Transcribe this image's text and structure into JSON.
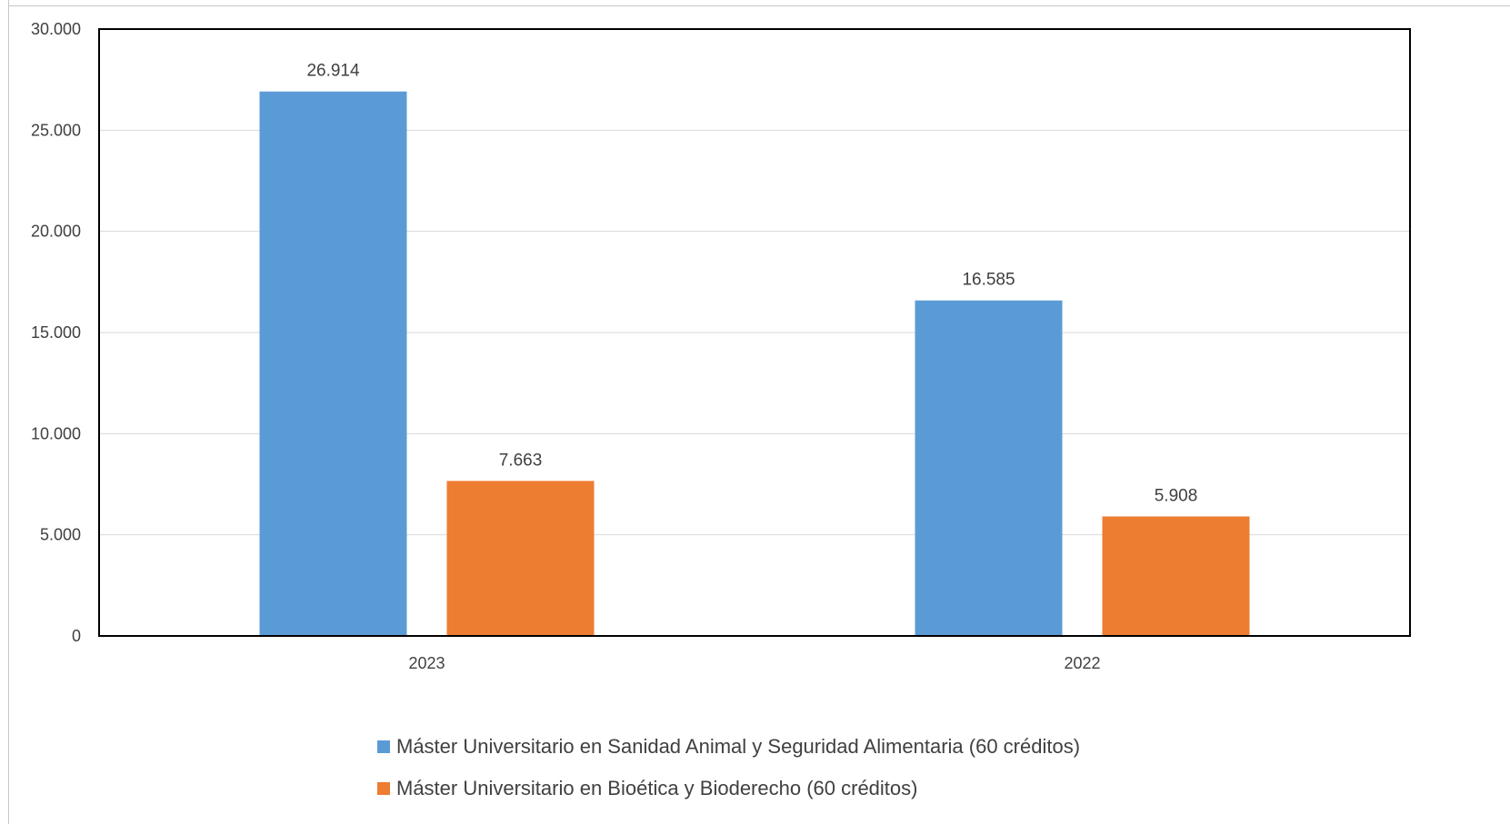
{
  "chart_data": {
    "type": "bar",
    "categories": [
      "2023",
      "2022"
    ],
    "series": [
      {
        "name": "Máster Universitario en Sanidad Animal y Seguridad Alimentaria (60 créditos)",
        "values": [
          26914,
          16585
        ],
        "labels": [
          "26.914",
          "16.585"
        ],
        "color": "#5B9BD5"
      },
      {
        "name": "Máster Universitario en Bioética y Bioderecho (60 créditos)",
        "values": [
          7663,
          5908
        ],
        "labels": [
          "7.663",
          "5.908"
        ],
        "color": "#ED7D31"
      }
    ],
    "yticks": [
      0,
      5000,
      10000,
      15000,
      20000,
      25000,
      30000
    ],
    "ytick_labels": [
      "0",
      "5.000",
      "10.000",
      "15.000",
      "20.000",
      "25.000",
      "30.000"
    ],
    "ylim": [
      0,
      30000
    ],
    "grid": true,
    "legend_position": "bottom",
    "xlabel": "",
    "ylabel": ""
  }
}
